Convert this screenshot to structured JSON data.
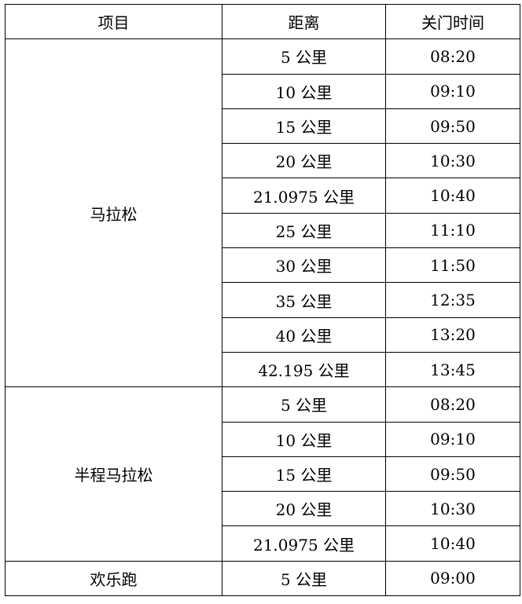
{
  "headers": [
    "项目",
    "距离",
    "关门时间"
  ],
  "groups": [
    {
      "name": "马拉松",
      "rows": [
        {
          "distance": "5 公里",
          "time": "08:20"
        },
        {
          "distance": "10 公里",
          "time": "09:10"
        },
        {
          "distance": "15 公里",
          "time": "09:50"
        },
        {
          "distance": "20 公里",
          "time": "10:30"
        },
        {
          "distance": "21.0975 公里",
          "time": "10:40"
        },
        {
          "distance": "25 公里",
          "time": "11:10"
        },
        {
          "distance": "30 公里",
          "time": "11:50"
        },
        {
          "distance": "35 公里",
          "time": "12:35"
        },
        {
          "distance": "40 公里",
          "time": "13:20"
        },
        {
          "distance": "42.195 公里",
          "time": "13:45"
        }
      ]
    },
    {
      "name": "半程马拉松",
      "rows": [
        {
          "distance": "5 公里",
          "time": "08:20"
        },
        {
          "distance": "10 公里",
          "time": "09:10"
        },
        {
          "distance": "15 公里",
          "time": "09:50"
        },
        {
          "distance": "20 公里",
          "time": "10:30"
        },
        {
          "distance": "21.0975 公里",
          "time": "10:40"
        }
      ]
    },
    {
      "name": "欢乐跑",
      "rows": [
        {
          "distance": "5 公里",
          "time": "09:00"
        }
      ]
    }
  ]
}
